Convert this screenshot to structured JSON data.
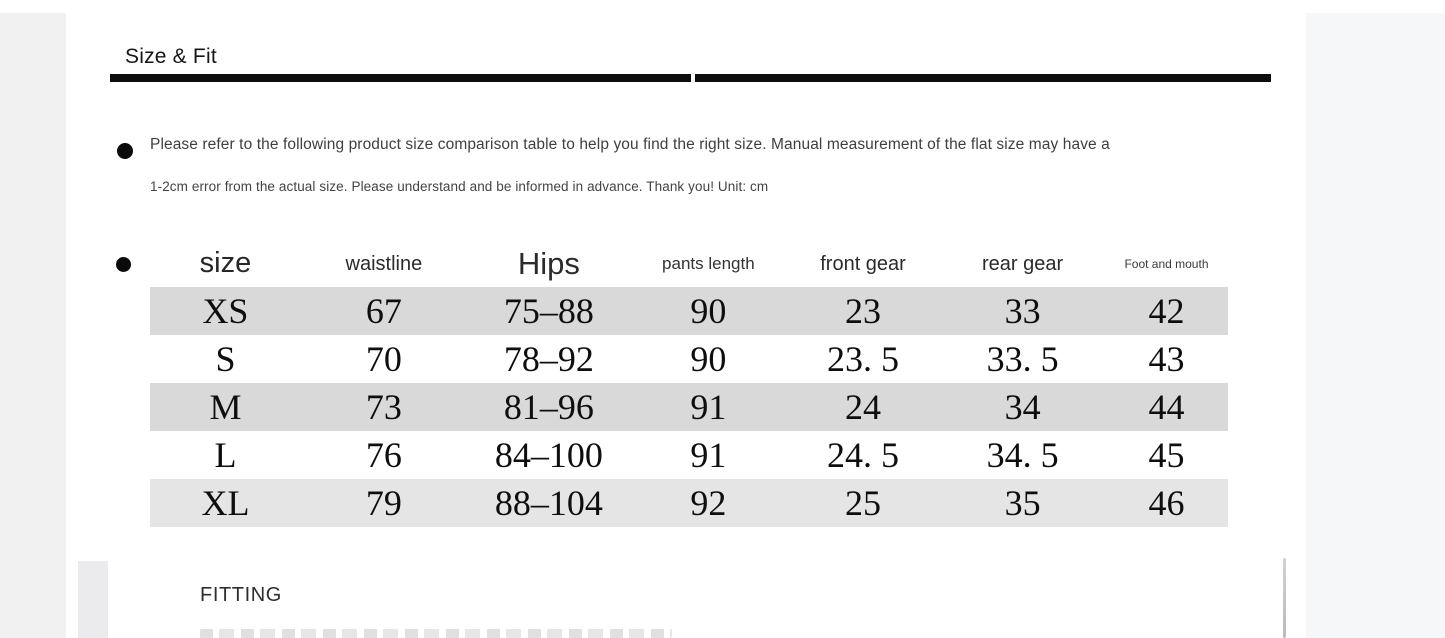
{
  "section": {
    "title": "Size & Fit"
  },
  "note": {
    "line1": "Please refer to the following product size comparison table to help you find the right size. Manual measurement of the flat size may have a",
    "line2": "1-2cm error from the actual size. Please understand and be informed in advance. Thank you! Unit: cm"
  },
  "size_table": {
    "columns": [
      "size",
      "waistline",
      "Hips",
      "pants length",
      "front gear",
      "rear gear",
      "Foot and mouth"
    ],
    "rows": [
      [
        "XS",
        "67",
        "75–88",
        "90",
        "23",
        "33",
        "42"
      ],
      [
        "S",
        "70",
        "78–92",
        "90",
        "23. 5",
        "33. 5",
        "43"
      ],
      [
        "M",
        "73",
        "81–96",
        "91",
        "24",
        "34",
        "44"
      ],
      [
        "L",
        "76",
        "84–100",
        "91",
        "24. 5",
        "34. 5",
        "45"
      ],
      [
        "XL",
        "79",
        "88–104",
        "92",
        "25",
        "35",
        "46"
      ]
    ]
  },
  "fitting": {
    "heading": "FITTING"
  },
  "colors": {
    "stripe_dark": "#d9d9d9",
    "stripe_light": "#e5e5e6",
    "divider": "#0d0d0d",
    "left_margin": "#f1f1f2",
    "right_margin": "#f6f7f9"
  }
}
